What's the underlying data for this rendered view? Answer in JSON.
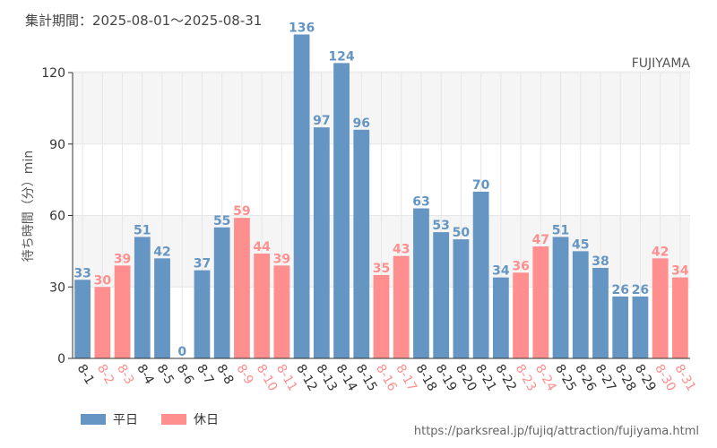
{
  "header": {
    "period": "集計期間：2025-08-01～2025-08-31"
  },
  "footer": {
    "source": "https://parksreal.jp/fujiq/attraction/fujiyama.html"
  },
  "chart_data": {
    "type": "bar",
    "annotation": "FUJIYAMA",
    "ylabel": "待ち時間（分）min",
    "ylim": [
      0,
      140
    ],
    "yticks": [
      0,
      30,
      60,
      90,
      120
    ],
    "grid": true,
    "legend_position": "bottom-left",
    "colors": {
      "weekday": "#6595c2",
      "holiday": "#ff8f8f"
    },
    "series": [
      {
        "name": "平日",
        "key": "weekday"
      },
      {
        "name": "休日",
        "key": "holiday"
      }
    ],
    "categories": [
      "8-1",
      "8-2",
      "8-3",
      "8-4",
      "8-5",
      "8-6",
      "8-7",
      "8-8",
      "8-9",
      "8-10",
      "8-11",
      "8-12",
      "8-13",
      "8-14",
      "8-15",
      "8-16",
      "8-17",
      "8-18",
      "8-19",
      "8-20",
      "8-21",
      "8-22",
      "8-23",
      "8-24",
      "8-25",
      "8-26",
      "8-27",
      "8-28",
      "8-29",
      "8-30",
      "8-31"
    ],
    "values": [
      33,
      30,
      39,
      51,
      42,
      0,
      37,
      55,
      59,
      44,
      39,
      136,
      97,
      124,
      96,
      35,
      43,
      63,
      53,
      50,
      70,
      34,
      36,
      47,
      51,
      45,
      38,
      26,
      26,
      42,
      34
    ],
    "day_type": [
      "weekday",
      "holiday",
      "holiday",
      "weekday",
      "weekday",
      "weekday",
      "weekday",
      "weekday",
      "holiday",
      "holiday",
      "holiday",
      "weekday",
      "weekday",
      "weekday",
      "weekday",
      "holiday",
      "holiday",
      "weekday",
      "weekday",
      "weekday",
      "weekday",
      "weekday",
      "holiday",
      "holiday",
      "weekday",
      "weekday",
      "weekday",
      "weekday",
      "weekday",
      "holiday",
      "holiday"
    ]
  }
}
